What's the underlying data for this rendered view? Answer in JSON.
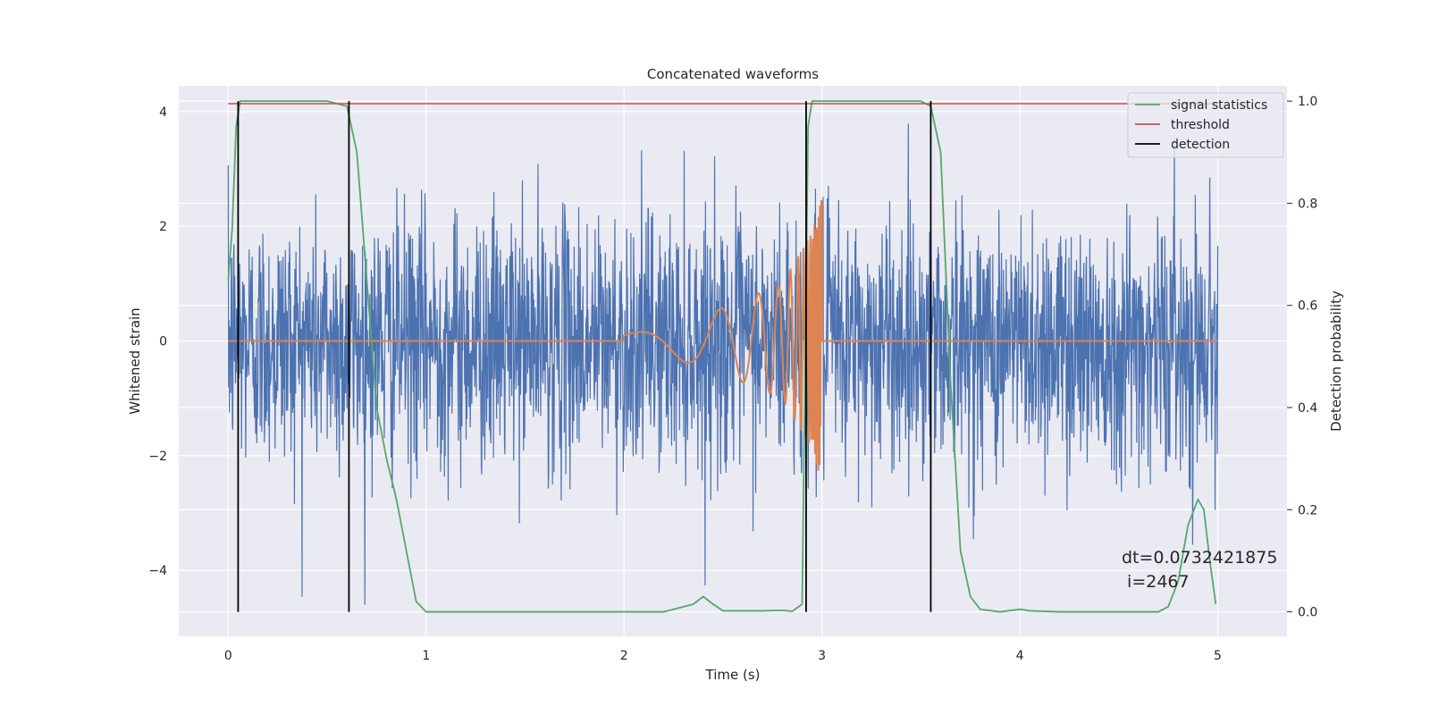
{
  "chart_data": {
    "type": "line",
    "title": "Concatenated waveforms",
    "xlabel": "Time (s)",
    "ylabel": "Whitened strain",
    "ylabel_right": "Detection probability",
    "xlim": [
      -0.25,
      5.35
    ],
    "ylim": [
      -5.15,
      4.45
    ],
    "ylim_right": [
      -0.048,
      1.03
    ],
    "x_ticks": [
      0,
      1,
      2,
      3,
      4,
      5
    ],
    "y_ticks": [
      -4,
      -2,
      0,
      2,
      4
    ],
    "y_right_ticks": [
      0.0,
      0.2,
      0.4,
      0.6,
      0.8,
      1.0
    ],
    "x_tick_labels": [
      "0",
      "1",
      "2",
      "3",
      "4",
      "5"
    ],
    "y_tick_labels": [
      "−4",
      "−2",
      "0",
      "2",
      "4"
    ],
    "y_right_tick_labels": [
      "0.0",
      "0.2",
      "0.4",
      "0.6",
      "0.8",
      "1.0"
    ],
    "grid": true,
    "legend_position": "top-right",
    "background": "#EAEAF2",
    "series": [
      {
        "key": "strain",
        "axis": "left",
        "color": "#4C72B0",
        "kind": "noise",
        "x_range": [
          0,
          5
        ],
        "typical_amplitude": 1.3,
        "peak_range": [
          -4.6,
          4.0
        ]
      },
      {
        "key": "waveform",
        "axis": "left",
        "color": "#DD8452",
        "kind": "chirp",
        "x": [
          0,
          2.0,
          2.4,
          2.8,
          2.95,
          3.0,
          5.0
        ],
        "amplitude": [
          0,
          0.1,
          0.45,
          1.0,
          1.9,
          2.5,
          0
        ],
        "chirp_x_range": [
          2.0,
          3.0
        ]
      },
      {
        "name": "signal statistics",
        "axis": "right",
        "color": "#55A868",
        "x": [
          0,
          0.02,
          0.04,
          0.06,
          0.1,
          0.5,
          0.6,
          0.65,
          0.7,
          0.75,
          0.8,
          0.85,
          0.9,
          0.95,
          1.0,
          2.2,
          2.35,
          2.4,
          2.45,
          2.5,
          2.7,
          2.8,
          2.85,
          2.9,
          2.93,
          2.95,
          3.0,
          3.5,
          3.55,
          3.6,
          3.65,
          3.7,
          3.75,
          3.8,
          3.9,
          4.0,
          4.05,
          4.2,
          4.7,
          4.75,
          4.8,
          4.85,
          4.9,
          4.93,
          4.96,
          4.99
        ],
        "y": [
          0.65,
          0.75,
          0.95,
          1.0,
          1.0,
          1.0,
          0.99,
          0.9,
          0.65,
          0.4,
          0.3,
          0.22,
          0.12,
          0.02,
          0.0,
          0.0,
          0.015,
          0.03,
          0.015,
          0.002,
          0.002,
          0.003,
          0.001,
          0.015,
          0.95,
          1.0,
          1.0,
          1.0,
          0.99,
          0.9,
          0.45,
          0.12,
          0.03,
          0.005,
          0.0,
          0.005,
          0.002,
          0.0,
          0.0,
          0.01,
          0.06,
          0.17,
          0.22,
          0.2,
          0.1,
          0.015
        ]
      },
      {
        "name": "threshold",
        "axis": "right",
        "color": "#C44E52",
        "x": [
          0,
          5
        ],
        "y": [
          0.995,
          0.995
        ]
      },
      {
        "name": "detection",
        "axis": "right",
        "color": "#000000",
        "kind": "vertical-lines",
        "x": [
          0.05,
          0.61,
          2.92,
          3.55
        ],
        "y_range": [
          0.0,
          1.0
        ]
      }
    ],
    "annotations": [
      {
        "text": "dt=0.0732421875",
        "x": 4.5,
        "y": 0.11,
        "axis": "right"
      },
      {
        "text": " i=2467",
        "x": 4.5,
        "y": 0.065,
        "axis": "right"
      }
    ]
  }
}
